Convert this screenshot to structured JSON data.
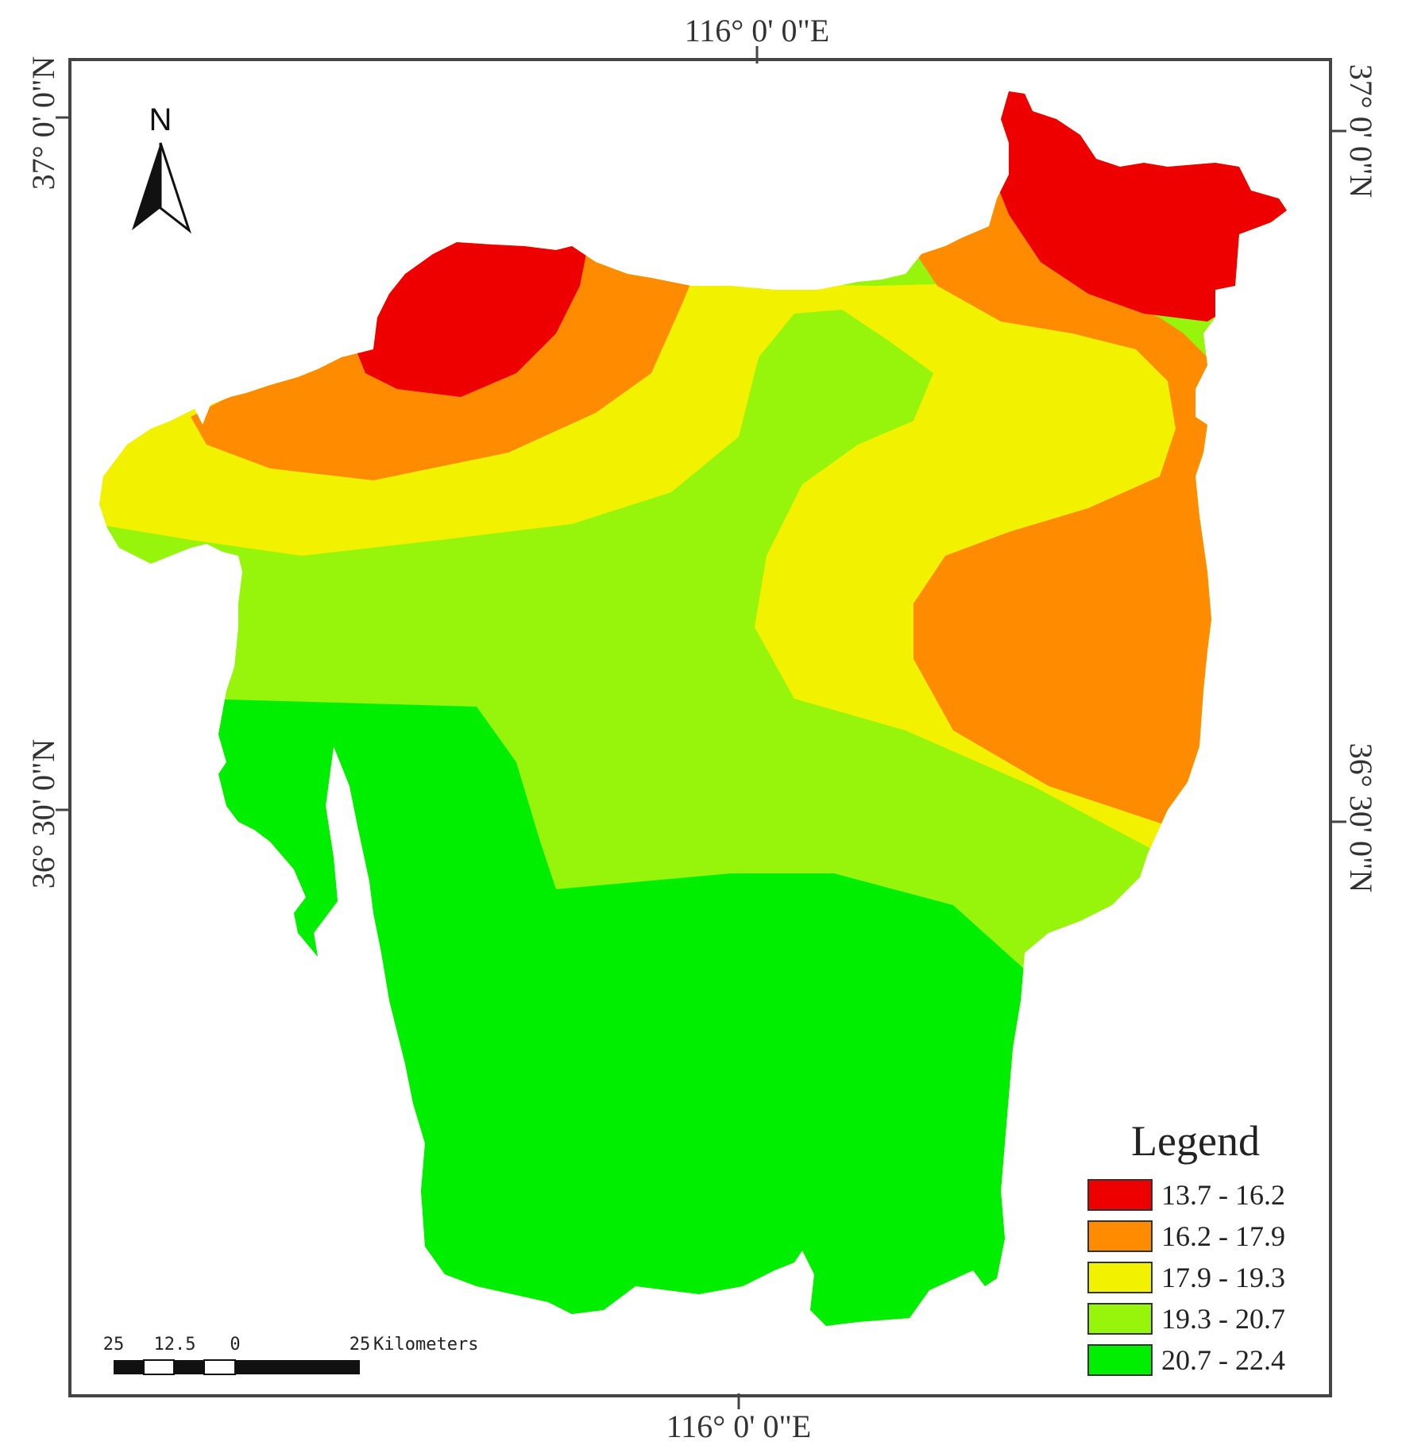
{
  "coords": {
    "top": "116° 0' 0\"E",
    "bottom": "116° 0' 0\"E",
    "left_upper": "37° 0' 0\"N",
    "left_lower": "36° 30' 0\"N",
    "right_upper": "37° 0' 0\"N",
    "right_lower": "36° 30' 0\"N"
  },
  "north_arrow": {
    "letter": "N",
    "icon": "north-arrow-icon"
  },
  "legend": {
    "title": "Legend",
    "items": [
      {
        "label": "13.7 - 16.2",
        "color": "#ee0000"
      },
      {
        "label": "16.2 - 17.9",
        "color": "#ff8c00"
      },
      {
        "label": "17.9 - 19.3",
        "color": "#f2f200"
      },
      {
        "label": "19.3 - 20.7",
        "color": "#96f50a"
      },
      {
        "label": "20.7 - 22.4",
        "color": "#00ee00"
      }
    ]
  },
  "scale_bar": {
    "labels": [
      "25",
      "12.5",
      "0",
      "25"
    ],
    "unit": "Kilometers"
  }
}
